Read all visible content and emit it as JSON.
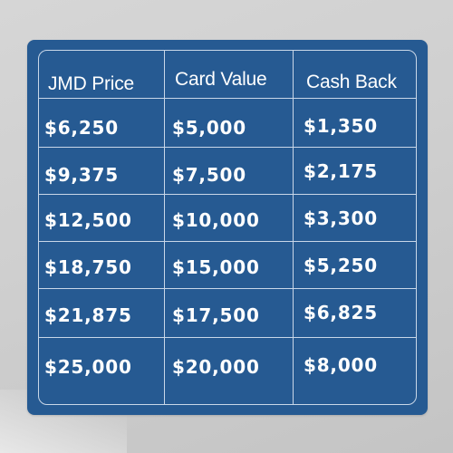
{
  "table": {
    "headers": [
      "JMD Price",
      "Card Value",
      "Cash Back"
    ],
    "rows": [
      [
        "$6,250",
        "$5,000",
        "$1,350"
      ],
      [
        "$9,375",
        "$7,500",
        "$2,175"
      ],
      [
        "$12,500",
        "$10,000",
        "$3,300"
      ],
      [
        "$18,750",
        "$15,000",
        "$5,250"
      ],
      [
        "$21,875",
        "$17,500",
        "$6,825"
      ],
      [
        "$25,000",
        "$20,000",
        "$8,000"
      ]
    ]
  },
  "colors": {
    "panel": "#265a92",
    "grid_lines": "#c9d7e8",
    "text": "#ffffff",
    "background": "#cfcfcf"
  }
}
